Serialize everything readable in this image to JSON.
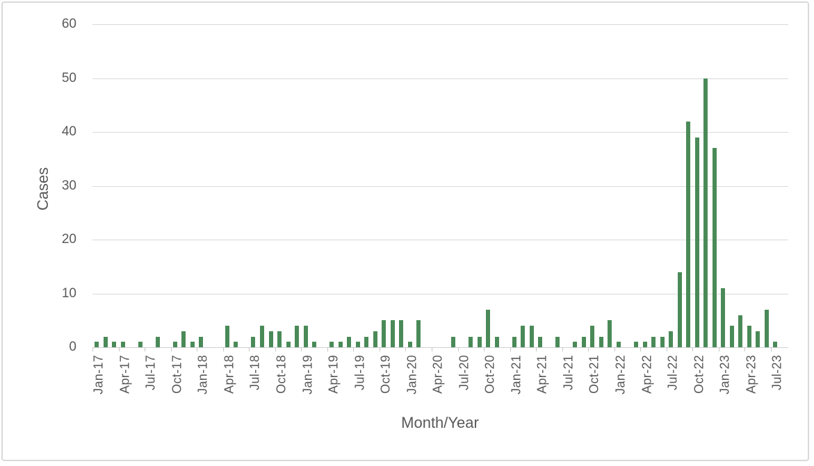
{
  "chart_data": {
    "type": "bar",
    "title": "",
    "xlabel": "Month/Year",
    "ylabel": "Cases",
    "ylim": [
      0,
      60
    ],
    "yticks": [
      0,
      10,
      20,
      30,
      40,
      50,
      60
    ],
    "grid": true,
    "legend": "none",
    "bar_color": "#4a8a58",
    "x_tick_labels": [
      "Jan-17",
      "Apr-17",
      "Jul-17",
      "Oct-17",
      "Jan-18",
      "Apr-18",
      "Jul-18",
      "Oct-18",
      "Jan-19",
      "Apr-19",
      "Jul-19",
      "Oct-19",
      "Jan-20",
      "Apr-20",
      "Jul-20",
      "Oct-20",
      "Jan-21",
      "Apr-21",
      "Jul-21",
      "Oct-21",
      "Jan-22",
      "Apr-22",
      "Jul-22",
      "Oct-22",
      "Jan-23",
      "Apr-23",
      "Jul-23"
    ],
    "categories": [
      "Jan-17",
      "Feb-17",
      "Mar-17",
      "Apr-17",
      "May-17",
      "Jun-17",
      "Jul-17",
      "Aug-17",
      "Sep-17",
      "Oct-17",
      "Nov-17",
      "Dec-17",
      "Jan-18",
      "Feb-18",
      "Mar-18",
      "Apr-18",
      "May-18",
      "Jun-18",
      "Jul-18",
      "Aug-18",
      "Sep-18",
      "Oct-18",
      "Nov-18",
      "Dec-18",
      "Jan-19",
      "Feb-19",
      "Mar-19",
      "Apr-19",
      "May-19",
      "Jun-19",
      "Jul-19",
      "Aug-19",
      "Sep-19",
      "Oct-19",
      "Nov-19",
      "Dec-19",
      "Jan-20",
      "Feb-20",
      "Mar-20",
      "Apr-20",
      "May-20",
      "Jun-20",
      "Jul-20",
      "Aug-20",
      "Sep-20",
      "Oct-20",
      "Nov-20",
      "Dec-20",
      "Jan-21",
      "Feb-21",
      "Mar-21",
      "Apr-21",
      "May-21",
      "Jun-21",
      "Jul-21",
      "Aug-21",
      "Sep-21",
      "Oct-21",
      "Nov-21",
      "Dec-21",
      "Jan-22",
      "Feb-22",
      "Mar-22",
      "Apr-22",
      "May-22",
      "Jun-22",
      "Jul-22",
      "Aug-22",
      "Sep-22",
      "Oct-22",
      "Nov-22",
      "Dec-22",
      "Jan-23",
      "Feb-23",
      "Mar-23",
      "Apr-23",
      "May-23",
      "Jun-23",
      "Jul-23"
    ],
    "values": [
      1,
      2,
      1,
      1,
      0,
      1,
      0,
      2,
      0,
      1,
      3,
      1,
      2,
      0,
      0,
      4,
      1,
      0,
      2,
      4,
      3,
      3,
      1,
      4,
      4,
      1,
      0,
      1,
      1,
      2,
      1,
      2,
      3,
      5,
      5,
      5,
      1,
      5,
      0,
      0,
      0,
      2,
      0,
      2,
      2,
      7,
      2,
      0,
      2,
      4,
      4,
      2,
      0,
      2,
      0,
      1,
      2,
      4,
      2,
      5,
      1,
      0,
      1,
      1,
      2,
      2,
      3,
      14,
      42,
      39,
      50,
      37,
      11,
      4,
      6,
      4,
      3,
      7,
      1
    ]
  },
  "style": {
    "grid_color": "#d9d9d9",
    "axis_color": "#d0d0d0",
    "tick_color": "#c6c6c6",
    "text_color": "#595959",
    "border_color": "#d9d9d9"
  }
}
